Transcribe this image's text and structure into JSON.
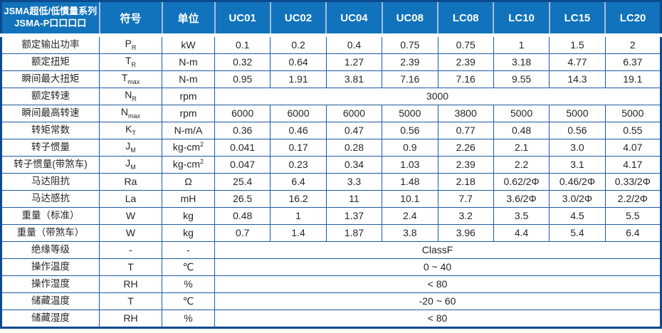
{
  "colors": {
    "header_bg": "#1173BB",
    "header_text": "#FFFFFF",
    "header_divider": "#A6BEDF",
    "grid_line": "#1D5AA0",
    "outer_border": "#0C4A8E",
    "body_text": "#262626"
  },
  "table": {
    "title_line1": "JSMA超低/低慣量系列",
    "title_line2": "JSMA-P口口口口",
    "symbol_header": "符号",
    "unit_header": "单位",
    "model_headers": [
      "UC01",
      "UC02",
      "UC04",
      "UC08",
      "LC08",
      "LC10",
      "LC15",
      "LC20"
    ],
    "rows": [
      {
        "label": "额定输出功率",
        "symbol": {
          "base": "P",
          "sub": "R"
        },
        "unit": {
          "text": "kW"
        },
        "values": [
          "0.1",
          "0.2",
          "0.4",
          "0.75",
          "0.75",
          "1",
          "1.5",
          "2"
        ]
      },
      {
        "label": "额定扭矩",
        "symbol": {
          "base": "T",
          "sub": "R"
        },
        "unit": {
          "text": "N-m"
        },
        "values": [
          "0.32",
          "0.64",
          "1.27",
          "2.39",
          "2.39",
          "3.18",
          "4.77",
          "6.37"
        ]
      },
      {
        "label": "瞬间最大扭矩",
        "symbol": {
          "base": "T",
          "sub": "max"
        },
        "unit": {
          "text": "N-m"
        },
        "values": [
          "0.95",
          "1.91",
          "3.81",
          "7.16",
          "7.16",
          "9.55",
          "14.3",
          "19.1"
        ]
      },
      {
        "label": "额定转速",
        "symbol": {
          "base": "N",
          "sub": "R"
        },
        "unit": {
          "text": "rpm"
        },
        "span_value": "3000"
      },
      {
        "label": "瞬间最高转速",
        "symbol": {
          "base": "N",
          "sub": "max"
        },
        "unit": {
          "text": "rpm"
        },
        "values": [
          "6000",
          "6000",
          "6000",
          "5000",
          "3800",
          "5000",
          "5000",
          "5000"
        ]
      },
      {
        "label": "转矩常数",
        "symbol": {
          "base": "K",
          "sub": "T"
        },
        "unit": {
          "text": "N-m/A"
        },
        "values": [
          "0.36",
          "0.46",
          "0.47",
          "0.56",
          "0.77",
          "0.48",
          "0.56",
          "0.55"
        ]
      },
      {
        "label": "转子惯量",
        "symbol": {
          "base": "J",
          "sub": "M"
        },
        "unit": {
          "text": "kg-cm",
          "sup": "2"
        },
        "values": [
          "0.041",
          "0.17",
          "0.28",
          "0.9",
          "2.26",
          "2.1",
          "3.0",
          "4.07"
        ]
      },
      {
        "label": "转子惯量(带煞车)",
        "symbol": {
          "base": "J",
          "sub": "M"
        },
        "unit": {
          "text": "kg-cm",
          "sup": "2"
        },
        "values": [
          "0.047",
          "0.23",
          "0.34",
          "1.03",
          "2.39",
          "2.2",
          "3.1",
          "4.17"
        ]
      },
      {
        "label": "马达阻抗",
        "symbol": {
          "base": "Ra"
        },
        "unit": {
          "text": "Ω"
        },
        "values": [
          "25.4",
          "6.4",
          "3.3",
          "1.48",
          "2.18",
          "0.62/2Φ",
          "0.46/2Φ",
          "0.33/2Φ"
        ]
      },
      {
        "label": "马达感抗",
        "symbol": {
          "base": "La"
        },
        "unit": {
          "text": "mH"
        },
        "values": [
          "26.5",
          "16.2",
          "11",
          "10.1",
          "7.7",
          "3.6/2Φ",
          "3.0/2Φ",
          "2.2/2Φ"
        ]
      },
      {
        "label": "重量（标准）",
        "symbol": {
          "base": "W"
        },
        "unit": {
          "text": "kg"
        },
        "values": [
          "0.48",
          "1",
          "1.37",
          "2.4",
          "3.2",
          "3.5",
          "4.5",
          "5.5"
        ]
      },
      {
        "label": "重量（带煞车）",
        "symbol": {
          "base": "W"
        },
        "unit": {
          "text": "kg"
        },
        "values": [
          "0.7",
          "1.4",
          "1.87",
          "3.8",
          "3.96",
          "4.4",
          "5.4",
          "6.4"
        ]
      },
      {
        "label": "绝缘等级",
        "symbol": {
          "base": "-"
        },
        "unit": {
          "text": "-"
        },
        "span_value": "ClassF"
      },
      {
        "label": "操作温度",
        "symbol": {
          "base": "T"
        },
        "unit": {
          "text": "℃"
        },
        "span_value": "0 ~ 40"
      },
      {
        "label": "操作湿度",
        "symbol": {
          "base": "RH"
        },
        "unit": {
          "text": "%"
        },
        "span_value": "< 80"
      },
      {
        "label": "储藏温度",
        "symbol": {
          "base": "T"
        },
        "unit": {
          "text": "℃"
        },
        "span_value": "-20 ~ 60"
      },
      {
        "label": "储藏湿度",
        "symbol": {
          "base": "RH"
        },
        "unit": {
          "text": "%"
        },
        "span_value": "< 80"
      }
    ]
  }
}
